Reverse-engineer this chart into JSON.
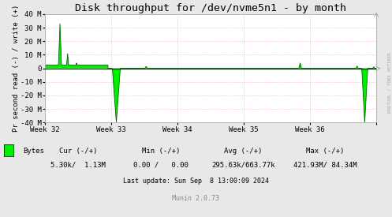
{
  "title": "Disk throughput for /dev/nvme5n1 - by month",
  "ylabel": "Pr second read (-) / write (+)",
  "background_color": "#e8e8e8",
  "plot_background_color": "#ffffff",
  "grid_color": "#ffaaaa",
  "border_color": "#aaaaaa",
  "line_color": "#00ee00",
  "line_color_dark": "#006600",
  "ylim": [
    -40000000,
    40000000
  ],
  "yticks": [
    -40000000,
    -30000000,
    -20000000,
    -10000000,
    0,
    10000000,
    20000000,
    30000000,
    40000000
  ],
  "ytick_labels": [
    "-40 M",
    "-30 M",
    "-20 M",
    "-10 M",
    "0",
    "10 M",
    "20 M",
    "30 M",
    "40 M"
  ],
  "week_labels": [
    "Week 32",
    "Week 33",
    "Week 34",
    "Week 35",
    "Week 36"
  ],
  "footer_text": "Last update: Sun Sep  8 13:00:09 2024",
  "munin_text": "Munin 2.0.73",
  "legend_label": "Bytes",
  "cur_text": "Cur (-/+)",
  "cur_val": "5.30k/  1.13M",
  "min_text": "Min (-/+)",
  "min_val": "0.00 /   0.00",
  "avg_text": "Avg (-/+)",
  "avg_val": "295.63k/663.77k",
  "max_text": "Max (-/+)",
  "max_val": "421.93M/ 84.34M",
  "rrdtool_text": "RRDTOOL / TOBI OETIKER",
  "title_fontsize": 9.5,
  "label_fontsize": 6.5,
  "tick_fontsize": 6.5,
  "footer_fontsize": 6
}
